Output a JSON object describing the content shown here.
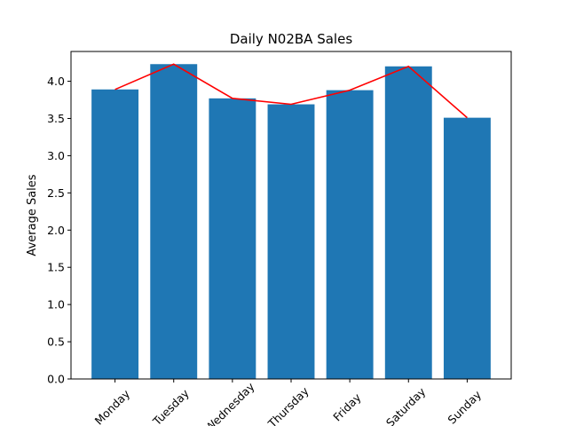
{
  "chart_data": {
    "type": "bar",
    "title": "Daily N02BA Sales",
    "xlabel": "",
    "ylabel": "Average Sales",
    "categories": [
      "Monday",
      "Tuesday",
      "Wednesday",
      "Thursday",
      "Friday",
      "Saturday",
      "Sunday"
    ],
    "values": [
      3.89,
      4.23,
      3.77,
      3.69,
      3.88,
      4.2,
      3.51
    ],
    "line_overlay": {
      "values": [
        3.89,
        4.23,
        3.77,
        3.69,
        3.88,
        4.2,
        3.51
      ],
      "color": "#ff0000"
    },
    "ylim": [
      0,
      4.4
    ],
    "yticks": [
      "0.0",
      "0.5",
      "1.0",
      "1.5",
      "2.0",
      "2.5",
      "3.0",
      "3.5",
      "4.0"
    ],
    "bar_color": "#1f77b4",
    "grid": false,
    "legend": "none"
  }
}
